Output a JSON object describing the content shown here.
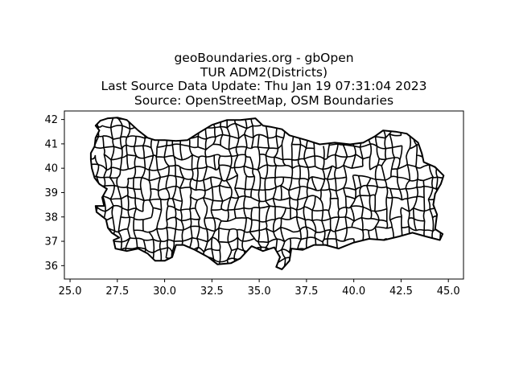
{
  "figure": {
    "title_lines": [
      "geoBoundaries.org - gbOpen",
      "TUR ADM2(Districts)",
      "Last Source Data Update: Thu Jan 19 07:31:04 2023",
      "Source: OpenStreetMap, OSM Boundaries"
    ]
  },
  "chart_data": {
    "type": "map",
    "xlim": [
      24.7,
      45.8
    ],
    "ylim": [
      35.45,
      42.35
    ],
    "x_ticks": [
      25.0,
      27.5,
      30.0,
      32.5,
      35.0,
      37.5,
      40.0,
      42.5,
      45.0
    ],
    "x_tick_labels": [
      "25.0",
      "27.5",
      "30.0",
      "32.5",
      "35.0",
      "37.5",
      "40.0",
      "42.5",
      "45.0"
    ],
    "y_ticks": [
      36,
      37,
      38,
      39,
      40,
      41,
      42
    ],
    "y_tick_labels": [
      "36",
      "37",
      "38",
      "39",
      "40",
      "41",
      "42"
    ],
    "boundary_color": "#000000",
    "fill_color": "#ffffff",
    "outline": [
      [
        26.1,
        40.35
      ],
      [
        26.1,
        40.62
      ],
      [
        26.3,
        40.9
      ],
      [
        26.35,
        41.25
      ],
      [
        26.55,
        41.55
      ],
      [
        26.35,
        41.75
      ],
      [
        26.6,
        41.95
      ],
      [
        27.0,
        42.05
      ],
      [
        27.5,
        42.08
      ],
      [
        28.0,
        41.98
      ],
      [
        28.6,
        41.55
      ],
      [
        29.1,
        41.25
      ],
      [
        29.5,
        41.15
      ],
      [
        30.0,
        41.15
      ],
      [
        30.6,
        41.12
      ],
      [
        31.2,
        41.15
      ],
      [
        31.8,
        41.45
      ],
      [
        32.5,
        41.78
      ],
      [
        33.3,
        41.98
      ],
      [
        34.0,
        41.98
      ],
      [
        34.8,
        42.05
      ],
      [
        35.2,
        41.75
      ],
      [
        35.6,
        41.7
      ],
      [
        36.2,
        41.6
      ],
      [
        36.6,
        41.35
      ],
      [
        37.5,
        41.15
      ],
      [
        38.2,
        40.98
      ],
      [
        39.0,
        41.05
      ],
      [
        39.8,
        40.98
      ],
      [
        40.5,
        41.05
      ],
      [
        41.1,
        41.3
      ],
      [
        41.55,
        41.55
      ],
      [
        42.2,
        41.5
      ],
      [
        42.8,
        41.42
      ],
      [
        43.4,
        41.05
      ],
      [
        43.6,
        40.6
      ],
      [
        43.7,
        40.25
      ],
      [
        44.3,
        40.05
      ],
      [
        44.75,
        39.7
      ],
      [
        44.6,
        39.35
      ],
      [
        44.3,
        38.95
      ],
      [
        44.2,
        38.5
      ],
      [
        44.4,
        38.1
      ],
      [
        44.3,
        37.5
      ],
      [
        44.7,
        37.3
      ],
      [
        44.55,
        37.05
      ],
      [
        43.8,
        37.2
      ],
      [
        43.1,
        37.35
      ],
      [
        42.4,
        37.2
      ],
      [
        41.6,
        37.05
      ],
      [
        40.8,
        37.1
      ],
      [
        40.0,
        36.95
      ],
      [
        39.2,
        36.7
      ],
      [
        38.5,
        36.85
      ],
      [
        37.9,
        36.85
      ],
      [
        37.3,
        36.65
      ],
      [
        36.7,
        36.7
      ],
      [
        36.6,
        36.2
      ],
      [
        36.2,
        35.85
      ],
      [
        35.9,
        35.95
      ],
      [
        36.1,
        36.35
      ],
      [
        35.8,
        36.75
      ],
      [
        35.2,
        36.6
      ],
      [
        34.6,
        36.8
      ],
      [
        34.0,
        36.3
      ],
      [
        33.5,
        36.1
      ],
      [
        32.8,
        36.05
      ],
      [
        32.3,
        36.35
      ],
      [
        31.6,
        36.65
      ],
      [
        31.0,
        36.85
      ],
      [
        30.6,
        36.85
      ],
      [
        30.4,
        36.35
      ],
      [
        30.0,
        36.2
      ],
      [
        29.5,
        36.2
      ],
      [
        29.1,
        36.5
      ],
      [
        28.6,
        36.7
      ],
      [
        28.0,
        36.6
      ],
      [
        27.4,
        36.7
      ],
      [
        27.3,
        37.05
      ],
      [
        27.6,
        37.15
      ],
      [
        27.2,
        37.35
      ],
      [
        27.0,
        37.55
      ],
      [
        26.9,
        37.9
      ],
      [
        26.4,
        38.2
      ],
      [
        26.35,
        38.45
      ],
      [
        26.8,
        38.45
      ],
      [
        26.7,
        38.8
      ],
      [
        26.95,
        39.15
      ],
      [
        26.55,
        39.35
      ],
      [
        26.3,
        39.6
      ],
      [
        26.15,
        40.0
      ],
      [
        26.1,
        40.35
      ]
    ]
  }
}
